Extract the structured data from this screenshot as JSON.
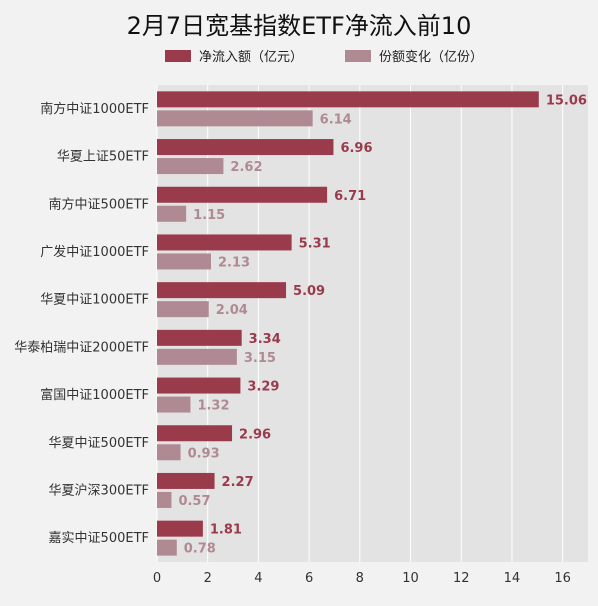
{
  "colors": {
    "inflow": "#9a3b4c",
    "share_change": "#b08a93",
    "plot_bg": "#e3e3e3",
    "page_bg": "#f2f2f2"
  },
  "chart_data": {
    "type": "bar",
    "orientation": "horizontal",
    "title": "2月7日宽基指数ETF净流入前10",
    "legend_position": "top",
    "categories": [
      "南方中证1000ETF",
      "华夏上证50ETF",
      "南方中证500ETF",
      "广发中证1000ETF",
      "华夏中证1000ETF",
      "华泰柏瑞中证2000ETF",
      "富国中证1000ETF",
      "华夏中证500ETF",
      "华夏沪深300ETF",
      "嘉实中证500ETF"
    ],
    "series": [
      {
        "name": "净流入额（亿元）",
        "values": [
          15.06,
          6.96,
          6.71,
          5.31,
          5.09,
          3.34,
          3.29,
          2.96,
          2.27,
          1.81
        ]
      },
      {
        "name": "份额变化（亿份）",
        "values": [
          6.14,
          2.62,
          1.15,
          2.13,
          2.04,
          3.15,
          1.32,
          0.93,
          0.57,
          0.78
        ]
      }
    ],
    "xlim": [
      0,
      17
    ],
    "xticks": [
      "0",
      "2",
      "4",
      "6",
      "8",
      "10",
      "12",
      "14",
      "16"
    ],
    "grid": true
  }
}
